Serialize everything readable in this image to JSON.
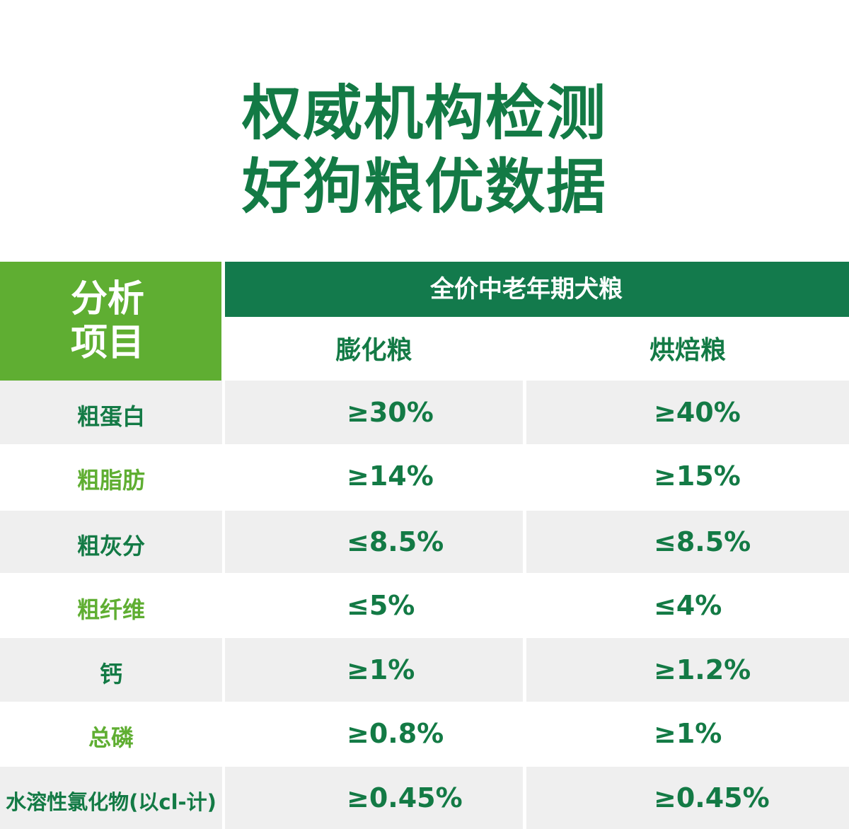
{
  "title": {
    "line1": "权威机构检测",
    "line2": "好狗粮优数据"
  },
  "table": {
    "item_header_line1": "分析",
    "item_header_line2": "项目",
    "group_header": "全价中老年期犬粮",
    "col1_header": "膨化粮",
    "col2_header": "烘焙粮",
    "rows": [
      {
        "item": "粗蛋白",
        "v1": "≥30%",
        "v2": "≥40%"
      },
      {
        "item": "粗脂肪",
        "v1": "≥14%",
        "v2": "≥15%"
      },
      {
        "item": "粗灰分",
        "v1": "≤8.5%",
        "v2": "≤8.5%"
      },
      {
        "item": "粗纤维",
        "v1": "≤5%",
        "v2": "≤4%"
      },
      {
        "item": "钙",
        "v1": "≥1%",
        "v2": "≥1.2%"
      },
      {
        "item": "总磷",
        "v1": "≥0.8%",
        "v2": "≥1%"
      },
      {
        "item": "水溶性氯化物(以cl-计)",
        "v1": "≥0.45%",
        "v2": "≥0.45%"
      }
    ]
  },
  "colors": {
    "dark_green": "#137a45",
    "light_green": "#5fae32",
    "row_shade": "#efefef"
  }
}
